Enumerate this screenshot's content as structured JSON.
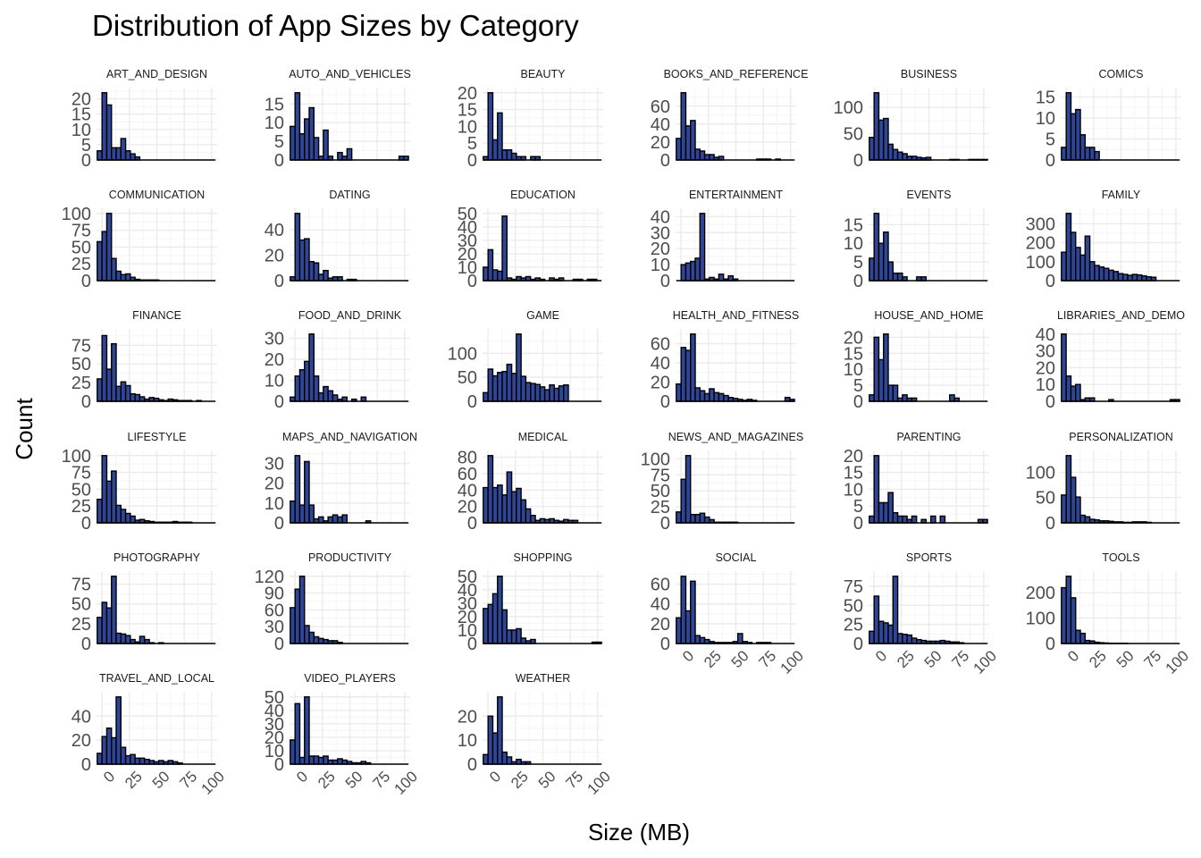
{
  "colors": {
    "bar_fill": "#2f4596",
    "bar_outline": "#000000",
    "grid": "#ebebeb",
    "background": "#ffffff"
  },
  "chart_data": {
    "type": "bar",
    "subtype": "faceted-histogram",
    "title": "Distribution of App Sizes by Category",
    "xlabel": "Size (MB)",
    "ylabel": "Count",
    "xlim": [
      -5,
      105
    ],
    "x_ticks": [
      "0",
      "25",
      "50",
      "75",
      "100"
    ],
    "bin_width": 4.3,
    "bin_centers": [
      -2.2,
      2.2,
      6.5,
      10.8,
      15.1,
      19.4,
      23.7,
      28.0,
      32.3,
      36.6,
      41.0,
      45.3,
      49.6,
      53.9,
      58.2,
      62.5,
      66.8,
      71.1,
      75.4,
      79.7,
      84.1,
      88.4,
      92.7,
      97.0,
      101.3
    ],
    "grid": true,
    "facets": [
      {
        "name": "ART_AND_DESIGN",
        "y_ticks": [
          0,
          5,
          10,
          15,
          20
        ],
        "ymax": 22,
        "values": [
          3,
          22,
          18,
          4,
          4,
          7,
          3,
          2,
          1,
          0,
          0,
          0,
          0,
          0,
          0,
          0,
          0,
          0,
          0,
          0,
          0,
          0,
          0,
          0,
          0
        ]
      },
      {
        "name": "AUTO_AND_VEHICLES",
        "y_ticks": [
          0,
          5,
          10,
          15
        ],
        "ymax": 18,
        "values": [
          9,
          18,
          7,
          11,
          14,
          6,
          1,
          8,
          1,
          0,
          2,
          1,
          3,
          0,
          0,
          0,
          0,
          0,
          0,
          0,
          0,
          0,
          0,
          1,
          1
        ]
      },
      {
        "name": "BEAUTY",
        "y_ticks": [
          0,
          5,
          10,
          15,
          20
        ],
        "ymax": 20,
        "values": [
          1,
          20,
          6,
          14,
          3,
          3,
          2,
          1,
          1,
          0,
          1,
          1,
          0,
          0,
          0,
          0,
          0,
          0,
          0,
          0,
          0,
          0,
          0,
          0,
          0
        ]
      },
      {
        "name": "BOOKS_AND_REFERENCE",
        "y_ticks": [
          0,
          20,
          40,
          60
        ],
        "ymax": 75,
        "values": [
          24,
          75,
          38,
          44,
          12,
          10,
          6,
          6,
          3,
          4,
          0,
          0,
          0,
          0,
          0,
          0,
          0,
          1,
          1,
          1,
          0,
          1,
          0,
          0,
          0
        ]
      },
      {
        "name": "BUSINESS",
        "y_ticks": [
          0,
          50,
          100
        ],
        "ymax": 128,
        "values": [
          43,
          128,
          76,
          79,
          30,
          20,
          15,
          12,
          7,
          7,
          5,
          4,
          5,
          0,
          0,
          0,
          0,
          1,
          1,
          0,
          0,
          1,
          1,
          1,
          1
        ]
      },
      {
        "name": "COMICS",
        "y_ticks": [
          0,
          5,
          10,
          15
        ],
        "ymax": 16,
        "values": [
          3,
          16,
          11,
          12,
          6,
          3,
          3,
          2,
          0,
          0,
          0,
          0,
          0,
          0,
          0,
          0,
          0,
          0,
          0,
          0,
          0,
          0,
          0,
          0,
          0
        ]
      },
      {
        "name": "COMMUNICATION",
        "y_ticks": [
          0,
          25,
          50,
          75,
          100
        ],
        "ymax": 100,
        "values": [
          58,
          73,
          100,
          33,
          14,
          9,
          10,
          5,
          2,
          1,
          1,
          1,
          1,
          0,
          0,
          0,
          0,
          0,
          0,
          0,
          0,
          0,
          0,
          0,
          0
        ]
      },
      {
        "name": "DATING",
        "y_ticks": [
          0,
          20,
          40
        ],
        "ymax": 53,
        "values": [
          3,
          53,
          32,
          33,
          15,
          14,
          5,
          8,
          2,
          3,
          3,
          0,
          1,
          1,
          0,
          0,
          0,
          0,
          0,
          0,
          0,
          0,
          0,
          0,
          0
        ]
      },
      {
        "name": "EDUCATION",
        "y_ticks": [
          0,
          10,
          20,
          30,
          40,
          50
        ],
        "ymax": 48,
        "values": [
          10,
          23,
          8,
          7,
          48,
          2,
          1,
          3,
          2,
          3,
          1,
          2,
          1,
          0,
          2,
          1,
          2,
          0,
          0,
          1,
          1,
          0,
          1,
          1,
          0
        ]
      },
      {
        "name": "ENTERTAINMENT",
        "y_ticks": [
          0,
          10,
          20,
          30,
          40
        ],
        "ymax": 42,
        "values": [
          0,
          10,
          11,
          12,
          14,
          42,
          1,
          2,
          1,
          4,
          1,
          3,
          1,
          0,
          0,
          0,
          0,
          0,
          0,
          0,
          0,
          0,
          0,
          0,
          0
        ]
      },
      {
        "name": "EVENTS",
        "y_ticks": [
          0,
          5,
          10,
          15
        ],
        "ymax": 18,
        "values": [
          6,
          18,
          10,
          13,
          5,
          2,
          2,
          1,
          0,
          0,
          1,
          1,
          0,
          0,
          0,
          0,
          0,
          0,
          0,
          0,
          0,
          0,
          0,
          0,
          0
        ]
      },
      {
        "name": "FAMILY",
        "y_ticks": [
          0,
          100,
          200,
          300
        ],
        "ymax": 355,
        "values": [
          150,
          355,
          255,
          175,
          135,
          235,
          100,
          80,
          72,
          65,
          55,
          48,
          37,
          33,
          28,
          33,
          30,
          25,
          20,
          18,
          0,
          0,
          0,
          0,
          0
        ]
      },
      {
        "name": "FINANCE",
        "y_ticks": [
          0,
          25,
          50,
          75
        ],
        "ymax": 90,
        "values": [
          30,
          88,
          43,
          77,
          20,
          26,
          21,
          10,
          9,
          6,
          3,
          5,
          4,
          2,
          1,
          3,
          2,
          1,
          1,
          1,
          0,
          1,
          0,
          0,
          0
        ]
      },
      {
        "name": "FOOD_AND_DRINK",
        "y_ticks": [
          0,
          10,
          20,
          30
        ],
        "ymax": 32,
        "values": [
          2,
          12,
          15,
          19,
          32,
          12,
          4,
          7,
          5,
          3,
          1,
          2,
          0,
          1,
          0,
          2,
          0,
          0,
          0,
          0,
          0,
          0,
          0,
          0,
          0
        ]
      },
      {
        "name": "GAME",
        "y_ticks": [
          0,
          50,
          100
        ],
        "ymax": 140,
        "values": [
          18,
          67,
          53,
          60,
          62,
          77,
          58,
          140,
          52,
          39,
          37,
          35,
          30,
          24,
          34,
          27,
          32,
          34,
          0,
          0,
          0,
          0,
          0,
          0,
          0
        ]
      },
      {
        "name": "HEALTH_AND_FITNESS",
        "y_ticks": [
          0,
          20,
          40,
          60
        ],
        "ymax": 70,
        "values": [
          18,
          56,
          53,
          70,
          14,
          11,
          8,
          13,
          9,
          8,
          6,
          4,
          3,
          2,
          1,
          2,
          1,
          0,
          0,
          0,
          0,
          0,
          0,
          4,
          2
        ]
      },
      {
        "name": "HOUSE_AND_HOME",
        "y_ticks": [
          0,
          5,
          10,
          15,
          20
        ],
        "ymax": 21,
        "values": [
          2,
          20,
          13,
          21,
          5,
          5,
          1,
          2,
          1,
          1,
          0,
          0,
          0,
          0,
          0,
          0,
          0,
          2,
          1,
          0,
          0,
          0,
          0,
          0,
          0
        ]
      },
      {
        "name": "LIBRARIES_AND_DEMO",
        "y_ticks": [
          0,
          10,
          20,
          30,
          40
        ],
        "ymax": 40,
        "values": [
          40,
          15,
          9,
          10,
          1,
          2,
          2,
          0,
          0,
          0,
          1,
          0,
          0,
          0,
          0,
          0,
          0,
          0,
          0,
          0,
          0,
          0,
          0,
          1,
          1
        ]
      },
      {
        "name": "LIFESTYLE",
        "y_ticks": [
          0,
          25,
          50,
          75,
          100
        ],
        "ymax": 100,
        "values": [
          35,
          100,
          62,
          77,
          26,
          20,
          14,
          10,
          4,
          5,
          3,
          2,
          1,
          1,
          1,
          1,
          2,
          1,
          1,
          1,
          0,
          0,
          0,
          0,
          0
        ]
      },
      {
        "name": "MAPS_AND_NAVIGATION",
        "y_ticks": [
          0,
          10,
          20,
          30
        ],
        "ymax": 34,
        "values": [
          11,
          34,
          9,
          31,
          9,
          2,
          3,
          1,
          3,
          4,
          3,
          4,
          0,
          0,
          0,
          0,
          1,
          0,
          0,
          0,
          0,
          0,
          0,
          0,
          0
        ]
      },
      {
        "name": "MEDICAL",
        "y_ticks": [
          0,
          20,
          40,
          60,
          80
        ],
        "ymax": 82,
        "values": [
          43,
          82,
          43,
          46,
          34,
          62,
          38,
          42,
          28,
          17,
          9,
          3,
          5,
          4,
          5,
          3,
          2,
          4,
          3,
          3,
          0,
          0,
          0,
          0,
          0
        ]
      },
      {
        "name": "NEWS_AND_MAGAZINES",
        "y_ticks": [
          0,
          25,
          50,
          75,
          100
        ],
        "ymax": 105,
        "values": [
          17,
          68,
          105,
          13,
          13,
          15,
          9,
          5,
          1,
          1,
          1,
          1,
          1,
          0,
          0,
          0,
          0,
          0,
          0,
          0,
          0,
          0,
          0,
          0,
          0
        ]
      },
      {
        "name": "PARENTING",
        "y_ticks": [
          0,
          5,
          10,
          15,
          20
        ],
        "ymax": 20,
        "values": [
          2,
          20,
          6,
          6,
          9,
          3,
          2,
          2,
          1,
          2,
          0,
          1,
          0,
          2,
          0,
          2,
          0,
          0,
          0,
          0,
          0,
          0,
          0,
          1,
          1
        ]
      },
      {
        "name": "PERSONALIZATION",
        "y_ticks": [
          0,
          50,
          100
        ],
        "ymax": 133,
        "values": [
          55,
          133,
          90,
          51,
          15,
          12,
          7,
          6,
          4,
          4,
          3,
          2,
          2,
          1,
          1,
          2,
          2,
          2,
          1,
          0,
          0,
          0,
          0,
          0,
          0
        ]
      },
      {
        "name": "PHOTOGRAPHY",
        "y_ticks": [
          0,
          25,
          50,
          75
        ],
        "ymax": 85,
        "values": [
          33,
          52,
          45,
          85,
          13,
          12,
          10,
          5,
          2,
          9,
          5,
          1,
          0,
          1,
          0,
          0,
          0,
          0,
          0,
          0,
          0,
          0,
          0,
          0,
          0
        ]
      },
      {
        "name": "PRODUCTIVITY",
        "y_ticks": [
          0,
          30,
          60,
          90,
          120
        ],
        "ymax": 120,
        "values": [
          64,
          97,
          120,
          32,
          20,
          12,
          9,
          7,
          5,
          5,
          2,
          0,
          0,
          0,
          0,
          0,
          0,
          0,
          0,
          0,
          0,
          0,
          0,
          0,
          0
        ]
      },
      {
        "name": "SHOPPING",
        "y_ticks": [
          0,
          10,
          20,
          30,
          40,
          50
        ],
        "ymax": 50,
        "values": [
          26,
          29,
          37,
          50,
          25,
          10,
          10,
          11,
          4,
          2,
          3,
          0,
          0,
          0,
          0,
          0,
          0,
          0,
          0,
          0,
          0,
          0,
          0,
          1,
          1
        ]
      },
      {
        "name": "SOCIAL",
        "y_ticks": [
          0,
          20,
          40,
          60
        ],
        "ymax": 68,
        "values": [
          26,
          68,
          33,
          63,
          8,
          6,
          4,
          2,
          1,
          1,
          1,
          1,
          2,
          10,
          2,
          1,
          0,
          1,
          1,
          1,
          0,
          0,
          0,
          0,
          0
        ]
      },
      {
        "name": "SPORTS",
        "y_ticks": [
          0,
          25,
          50,
          75
        ],
        "ymax": 88,
        "values": [
          16,
          62,
          29,
          27,
          24,
          88,
          13,
          12,
          11,
          7,
          5,
          4,
          3,
          3,
          3,
          4,
          3,
          2,
          2,
          1,
          0,
          0,
          0,
          0,
          0
        ]
      },
      {
        "name": "TOOLS",
        "y_ticks": [
          0,
          100,
          200
        ],
        "ymax": 265,
        "values": [
          220,
          265,
          180,
          52,
          40,
          12,
          10,
          5,
          3,
          2,
          1,
          1,
          1,
          1,
          0,
          0,
          0,
          0,
          0,
          0,
          0,
          0,
          0,
          0,
          0
        ]
      },
      {
        "name": "TRAVEL_AND_LOCAL",
        "y_ticks": [
          0,
          20,
          40
        ],
        "ymax": 56,
        "values": [
          9,
          23,
          30,
          22,
          56,
          14,
          7,
          8,
          5,
          5,
          4,
          3,
          2,
          3,
          2,
          3,
          2,
          1,
          0,
          0,
          0,
          0,
          0,
          0,
          0
        ]
      },
      {
        "name": "VIDEO_PLAYERS",
        "y_ticks": [
          0,
          10,
          20,
          30,
          40,
          50
        ],
        "ymax": 50,
        "values": [
          18,
          45,
          5,
          50,
          6,
          6,
          5,
          6,
          3,
          3,
          4,
          3,
          2,
          1,
          1,
          2,
          1,
          0,
          0,
          0,
          0,
          0,
          0,
          0,
          0
        ]
      },
      {
        "name": "WEATHER",
        "y_ticks": [
          0,
          10,
          20
        ],
        "ymax": 28,
        "values": [
          4,
          20,
          13,
          28,
          5,
          3,
          1,
          2,
          1,
          1,
          0,
          0,
          0,
          0,
          0,
          0,
          0,
          0,
          0,
          0,
          0,
          0,
          0,
          0,
          0
        ]
      }
    ]
  }
}
